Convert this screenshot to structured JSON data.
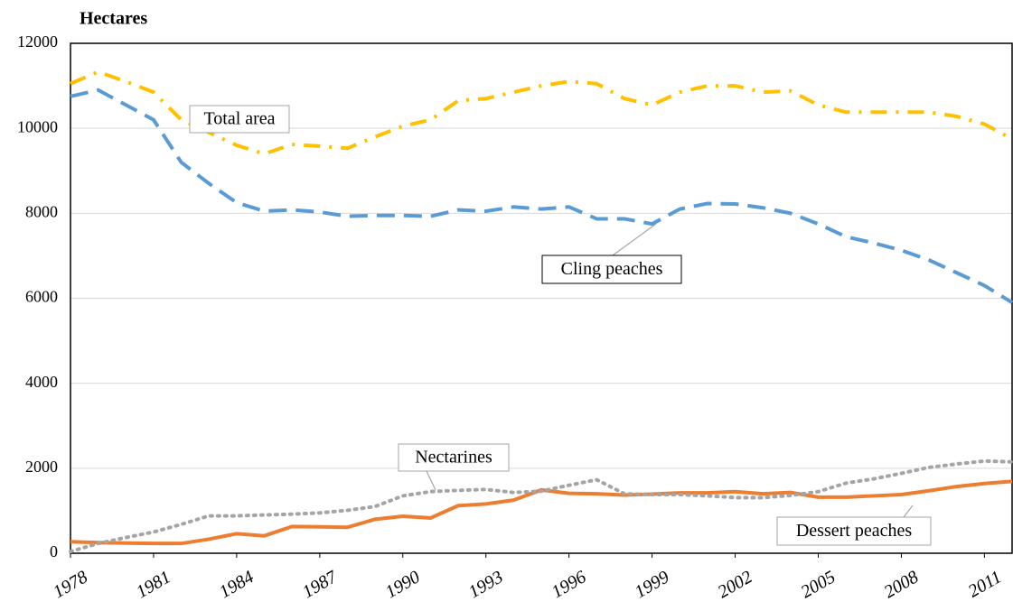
{
  "chart_data": {
    "type": "line",
    "y_label": "Hectares",
    "x": [
      1978,
      1979,
      1980,
      1981,
      1982,
      1983,
      1984,
      1985,
      1986,
      1987,
      1988,
      1989,
      1990,
      1991,
      1992,
      1993,
      1994,
      1995,
      1996,
      1997,
      1998,
      1999,
      2000,
      2001,
      2002,
      2003,
      2004,
      2005,
      2006,
      2007,
      2008,
      2009,
      2010,
      2011,
      2012
    ],
    "xlim": [
      1978,
      2012
    ],
    "xticks": [
      1978,
      1981,
      1984,
      1987,
      1990,
      1993,
      1996,
      1999,
      2002,
      2005,
      2008,
      2011
    ],
    "ylim": [
      0,
      12000
    ],
    "yticks": [
      0,
      2000,
      4000,
      6000,
      8000,
      10000,
      12000
    ],
    "grid": true,
    "series": [
      {
        "name": "Total area",
        "color": "#ffc000",
        "style": "dash-dot",
        "values": [
          11050,
          11330,
          11100,
          10850,
          10200,
          9900,
          9600,
          9400,
          9620,
          9580,
          9530,
          9800,
          10050,
          10200,
          10650,
          10700,
          10850,
          11000,
          11100,
          11050,
          10700,
          10550,
          10850,
          11000,
          11000,
          10850,
          10880,
          10550,
          10380,
          10380,
          10380,
          10380,
          10280,
          10100,
          9750
        ]
      },
      {
        "name": "Cling peaches",
        "color": "#5b9bd5",
        "style": "dash",
        "values": [
          10750,
          10900,
          10550,
          10200,
          9200,
          8700,
          8250,
          8050,
          8080,
          8030,
          7930,
          7950,
          7950,
          7930,
          8080,
          8050,
          8150,
          8100,
          8150,
          7870,
          7870,
          7750,
          8100,
          8230,
          8220,
          8130,
          8000,
          7750,
          7450,
          7300,
          7130,
          6900,
          6600,
          6300,
          5900
        ]
      },
      {
        "name": "Dessert peaches",
        "color": "#ed7d31",
        "style": "solid",
        "values": [
          270,
          250,
          240,
          230,
          230,
          330,
          460,
          410,
          630,
          620,
          610,
          800,
          870,
          830,
          1120,
          1160,
          1250,
          1490,
          1410,
          1400,
          1370,
          1390,
          1420,
          1420,
          1450,
          1400,
          1430,
          1320,
          1320,
          1350,
          1380,
          1470,
          1570,
          1640,
          1690
        ]
      },
      {
        "name": "Nectarines",
        "color": "#a5a5a5",
        "style": "dot",
        "values": [
          40,
          230,
          370,
          500,
          680,
          880,
          880,
          900,
          920,
          950,
          1010,
          1100,
          1350,
          1450,
          1480,
          1500,
          1430,
          1460,
          1600,
          1730,
          1400,
          1380,
          1380,
          1350,
          1310,
          1310,
          1360,
          1450,
          1650,
          1750,
          1880,
          2020,
          2100,
          2170,
          2150
        ]
      }
    ]
  }
}
